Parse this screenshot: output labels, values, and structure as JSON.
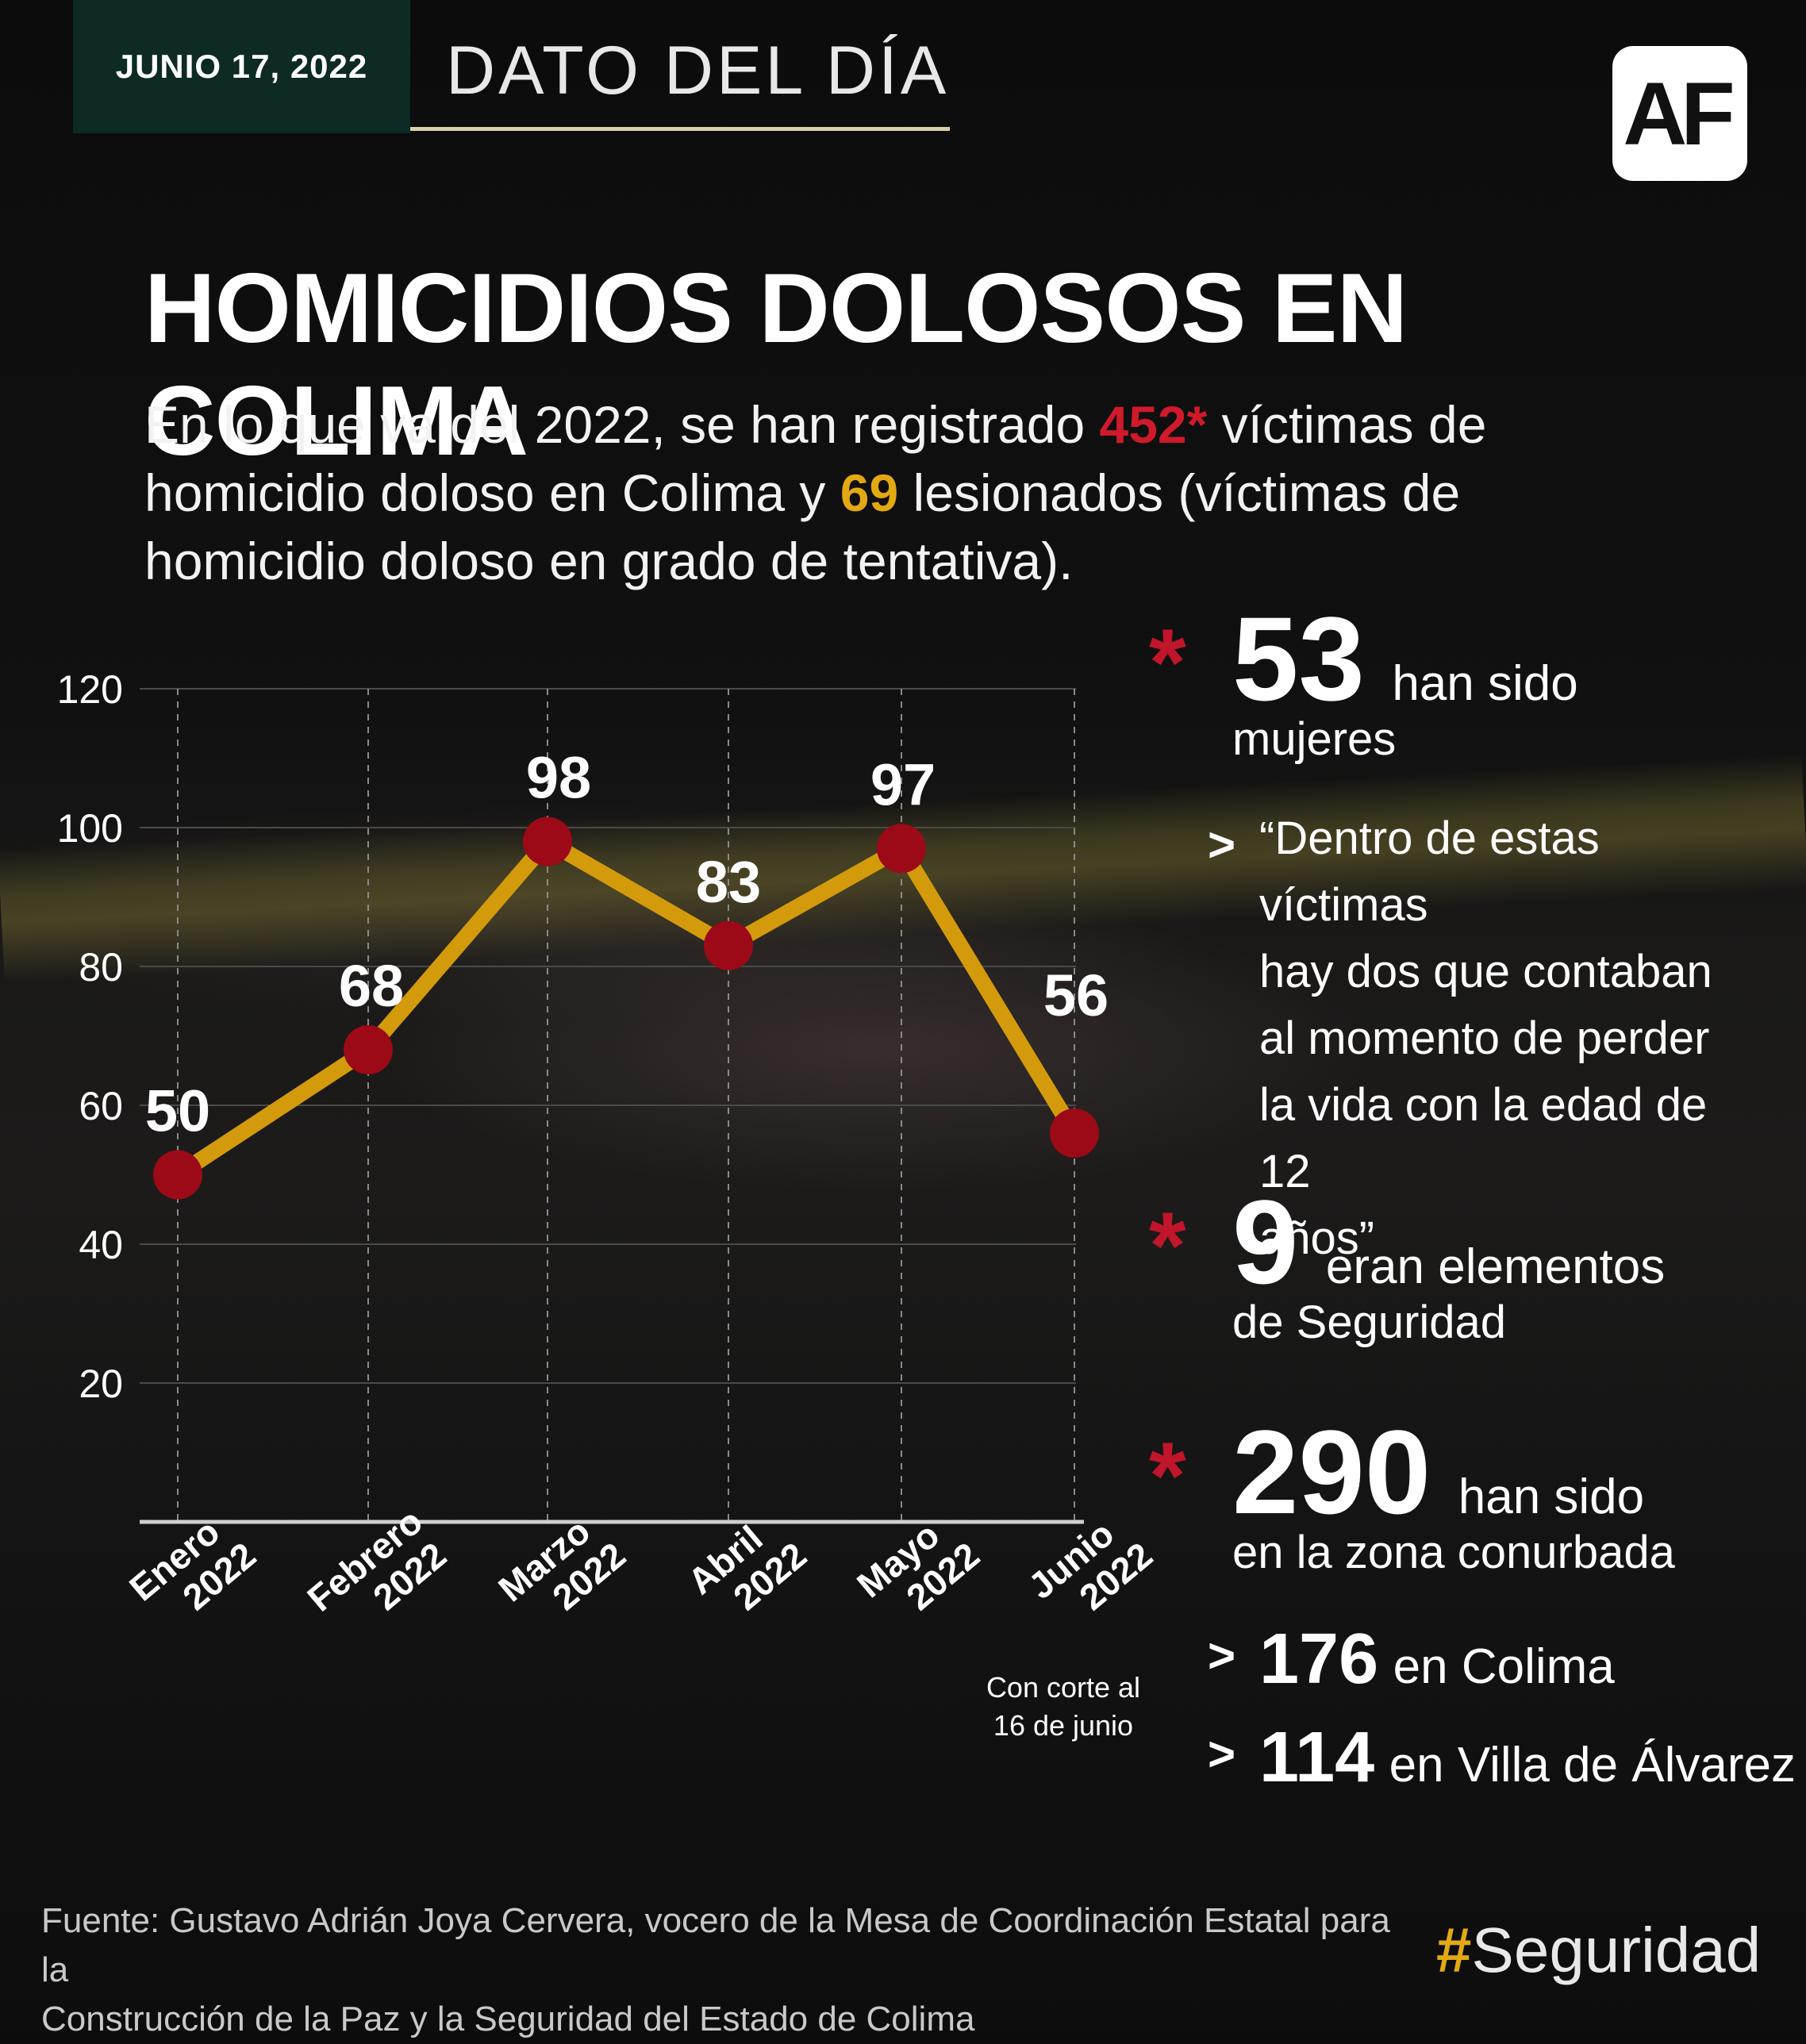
{
  "header": {
    "date": "JUNIO 17, 2022",
    "title": "DATO DEL DÍA",
    "logo": "AF"
  },
  "main_title": "HOMICIDIOS DOLOSOS EN COLIMA",
  "intro": {
    "p1": "En lo que va del 2022, se han registrado ",
    "hl1": "452*",
    "p2": " víctimas de homicidio doloso en Colima y ",
    "hl2": "69",
    "p3": " lesionados (víctimas de homicidio doloso en grado de tentativa)."
  },
  "chart_data": {
    "type": "line",
    "categories": [
      "Enero 2022",
      "Febrero 2022",
      "Marzo 2022",
      "Abril 2022",
      "Mayo 2022",
      "Junio 2022"
    ],
    "category_lines": [
      [
        "Enero",
        "2022"
      ],
      [
        "Febrero",
        "2022"
      ],
      [
        "Marzo",
        "2022"
      ],
      [
        "Abril",
        "2022"
      ],
      [
        "Mayo",
        "2022"
      ],
      [
        "Junio",
        "2022"
      ]
    ],
    "values": [
      50,
      68,
      98,
      83,
      97,
      56
    ],
    "yticks": [
      20,
      40,
      60,
      80,
      100,
      120
    ],
    "ylim": [
      0,
      120
    ],
    "grid": true,
    "line_color": "#d39a0c",
    "marker_color": "#9b0a16",
    "note": [
      "Con corte al",
      "16 de junio"
    ]
  },
  "stats": {
    "mujeres": {
      "number": "53",
      "text1": "han sido",
      "text2": "mujeres"
    },
    "quote": [
      "“Dentro de estas víctimas",
      "hay dos que contaban",
      "al momento de perder",
      "la vida con la edad de 12",
      "años”"
    ],
    "seguridad": {
      "number": "9",
      "text1": "eran elementos",
      "text2": "de Seguridad"
    },
    "conurbada": {
      "number": "290",
      "text1": "han sido",
      "text2": "en la zona conurbada"
    },
    "colima": {
      "number": "176",
      "text": "en Colima"
    },
    "villa": {
      "number": "114",
      "text": "en Villa de Álvarez"
    },
    "asterisk": "*",
    "chevron": ">"
  },
  "source": {
    "line1": "Fuente: Gustavo Adrián Joya Cervera, vocero de la Mesa de Coordinación Estatal para la",
    "line2": "Construcción de la Paz y la Seguridad del Estado de Colima"
  },
  "hashtag": {
    "hash": "#",
    "word": "Seguridad"
  }
}
